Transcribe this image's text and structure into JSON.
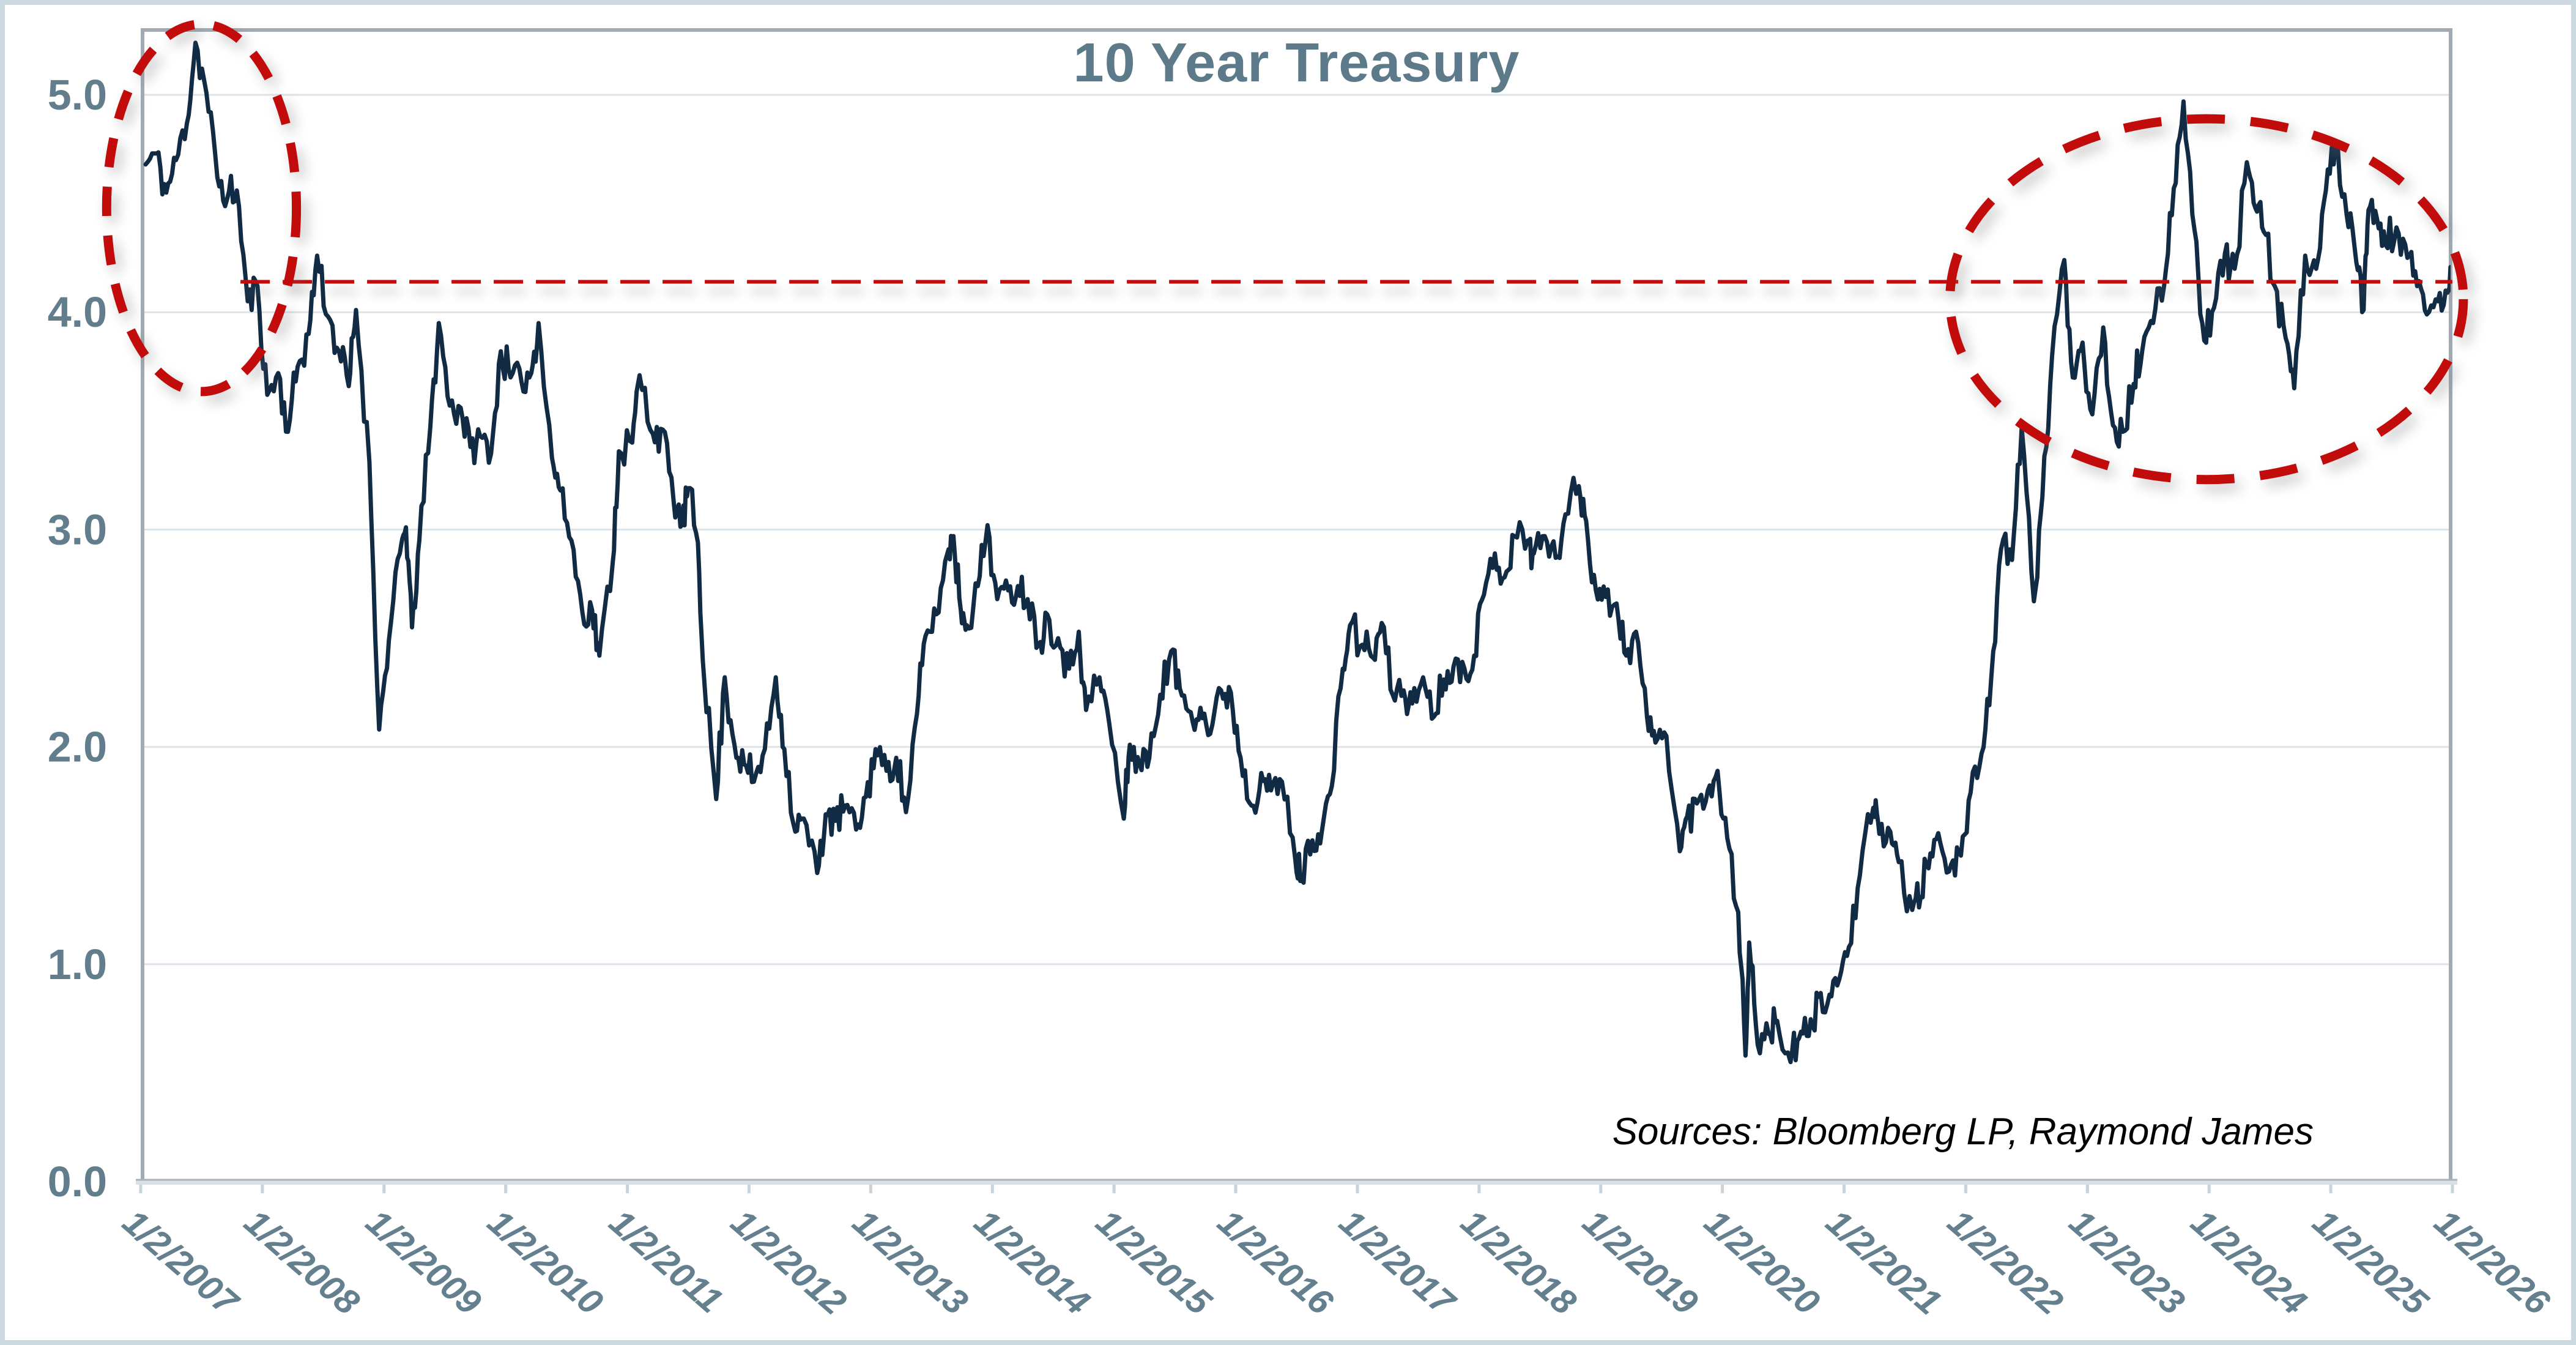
{
  "page": {
    "background": "#ffffff",
    "frame_color": "#cdd9e1"
  },
  "title": {
    "text": "10 Year Treasury",
    "color": "#5d7a8a"
  },
  "source_note": {
    "text": "Sources: Bloomberg LP, Raymond James",
    "color": "#000000"
  },
  "chart_data": {
    "type": "line",
    "title": "10 Year Treasury",
    "xlabel": "",
    "ylabel": "",
    "ylim": [
      0,
      5.31
    ],
    "xlim": [
      2007,
      2026
    ],
    "grid": {
      "horizontal": true,
      "vertical": false,
      "color": "#dce4ea"
    },
    "legend": "none",
    "plot_border_color": "#a2abb4",
    "axis_band_color": "#d9e1e7",
    "axis_edge_color": "#a9b3bb",
    "tick_mark_color": "#c9d3da",
    "y_axis": {
      "tick_values": [
        0,
        1,
        2,
        3,
        4,
        5
      ],
      "tick_labels": [
        "0.0",
        "1.0",
        "2.0",
        "3.0",
        "4.0",
        "5.0"
      ],
      "label_color": "#627e8d"
    },
    "x_axis": {
      "tick_years": [
        2007,
        2008,
        2009,
        2010,
        2011,
        2012,
        2013,
        2014,
        2015,
        2016,
        2017,
        2018,
        2019,
        2020,
        2021,
        2022,
        2023,
        2024,
        2025,
        2026
      ],
      "tick_labels": [
        "1/2/2007",
        "1/2/2008",
        "1/2/2009",
        "1/2/2010",
        "1/2/2011",
        "1/2/2012",
        "1/2/2013",
        "1/2/2014",
        "1/2/2015",
        "1/2/2016",
        "1/2/2017",
        "1/2/2018",
        "1/2/2019",
        "1/2/2020",
        "1/2/2021",
        "1/2/2022",
        "1/2/2023",
        "1/2/2024",
        "1/2/2025",
        "1/2/2026"
      ],
      "label_color": "#64808e",
      "label_rotation_deg": 41
    },
    "series": [
      {
        "name": "10 Year Treasury Yield (%)",
        "color": "#112b44",
        "stroke_width": 7,
        "points": [
          [
            2007.04,
            4.68
          ],
          [
            2007.13,
            4.73
          ],
          [
            2007.21,
            4.55
          ],
          [
            2007.29,
            4.7
          ],
          [
            2007.38,
            4.87
          ],
          [
            2007.45,
            5.24
          ],
          [
            2007.54,
            5.01
          ],
          [
            2007.63,
            4.62
          ],
          [
            2007.71,
            4.52
          ],
          [
            2007.79,
            4.56
          ],
          [
            2007.88,
            4.05
          ],
          [
            2007.96,
            4.12
          ],
          [
            2008.04,
            3.62
          ],
          [
            2008.13,
            3.72
          ],
          [
            2008.21,
            3.45
          ],
          [
            2008.29,
            3.75
          ],
          [
            2008.38,
            3.9
          ],
          [
            2008.45,
            4.26
          ],
          [
            2008.54,
            3.98
          ],
          [
            2008.63,
            3.82
          ],
          [
            2008.71,
            3.66
          ],
          [
            2008.77,
            4.01
          ],
          [
            2008.88,
            3.31
          ],
          [
            2008.96,
            2.08
          ],
          [
            2009.04,
            2.49
          ],
          [
            2009.13,
            2.89
          ],
          [
            2009.18,
            3.01
          ],
          [
            2009.23,
            2.55
          ],
          [
            2009.29,
            2.95
          ],
          [
            2009.38,
            3.47
          ],
          [
            2009.45,
            3.95
          ],
          [
            2009.54,
            3.57
          ],
          [
            2009.63,
            3.56
          ],
          [
            2009.71,
            3.38
          ],
          [
            2009.79,
            3.43
          ],
          [
            2009.88,
            3.35
          ],
          [
            2009.96,
            3.82
          ],
          [
            2010.04,
            3.7
          ],
          [
            2010.13,
            3.68
          ],
          [
            2010.21,
            3.72
          ],
          [
            2010.27,
            3.95
          ],
          [
            2010.38,
            3.33
          ],
          [
            2010.45,
            3.18
          ],
          [
            2010.54,
            2.95
          ],
          [
            2010.63,
            2.62
          ],
          [
            2010.71,
            2.63
          ],
          [
            2010.77,
            2.42
          ],
          [
            2010.88,
            2.85
          ],
          [
            2010.93,
            3.36
          ],
          [
            2011.04,
            3.4
          ],
          [
            2011.1,
            3.71
          ],
          [
            2011.21,
            3.44
          ],
          [
            2011.29,
            3.46
          ],
          [
            2011.38,
            3.13
          ],
          [
            2011.45,
            3.02
          ],
          [
            2011.5,
            3.19
          ],
          [
            2011.58,
            2.94
          ],
          [
            2011.63,
            2.32
          ],
          [
            2011.73,
            1.76
          ],
          [
            2011.8,
            2.32
          ],
          [
            2011.88,
            2.01
          ],
          [
            2011.96,
            1.92
          ],
          [
            2012.04,
            1.84
          ],
          [
            2012.13,
            1.99
          ],
          [
            2012.22,
            2.32
          ],
          [
            2012.29,
            1.99
          ],
          [
            2012.38,
            1.61
          ],
          [
            2012.45,
            1.67
          ],
          [
            2012.56,
            1.42
          ],
          [
            2012.63,
            1.69
          ],
          [
            2012.71,
            1.66
          ],
          [
            2012.79,
            1.73
          ],
          [
            2012.88,
            1.62
          ],
          [
            2012.96,
            1.77
          ],
          [
            2013.04,
            1.99
          ],
          [
            2013.13,
            1.89
          ],
          [
            2013.21,
            1.95
          ],
          [
            2013.29,
            1.7
          ],
          [
            2013.38,
            2.15
          ],
          [
            2013.45,
            2.51
          ],
          [
            2013.54,
            2.61
          ],
          [
            2013.63,
            2.89
          ],
          [
            2013.68,
            2.97
          ],
          [
            2013.74,
            2.63
          ],
          [
            2013.79,
            2.56
          ],
          [
            2013.88,
            2.74
          ],
          [
            2013.96,
            3.02
          ],
          [
            2014.04,
            2.68
          ],
          [
            2014.13,
            2.72
          ],
          [
            2014.21,
            2.74
          ],
          [
            2014.29,
            2.68
          ],
          [
            2014.38,
            2.47
          ],
          [
            2014.45,
            2.61
          ],
          [
            2014.54,
            2.5
          ],
          [
            2014.63,
            2.36
          ],
          [
            2014.71,
            2.53
          ],
          [
            2014.77,
            2.17
          ],
          [
            2014.88,
            2.32
          ],
          [
            2014.96,
            2.11
          ],
          [
            2015.08,
            1.67
          ],
          [
            2015.13,
            2.01
          ],
          [
            2015.21,
            1.92
          ],
          [
            2015.29,
            1.95
          ],
          [
            2015.38,
            2.24
          ],
          [
            2015.47,
            2.44
          ],
          [
            2015.54,
            2.27
          ],
          [
            2015.63,
            2.16
          ],
          [
            2015.71,
            2.18
          ],
          [
            2015.79,
            2.06
          ],
          [
            2015.88,
            2.26
          ],
          [
            2015.96,
            2.25
          ],
          [
            2016.04,
            1.95
          ],
          [
            2016.13,
            1.73
          ],
          [
            2016.21,
            1.88
          ],
          [
            2016.29,
            1.8
          ],
          [
            2016.38,
            1.84
          ],
          [
            2016.49,
            1.48
          ],
          [
            2016.54,
            1.39
          ],
          [
            2016.63,
            1.57
          ],
          [
            2016.71,
            1.62
          ],
          [
            2016.79,
            1.82
          ],
          [
            2016.88,
            2.36
          ],
          [
            2016.94,
            2.56
          ],
          [
            2017.04,
            2.47
          ],
          [
            2017.13,
            2.41
          ],
          [
            2017.2,
            2.57
          ],
          [
            2017.29,
            2.24
          ],
          [
            2017.38,
            2.26
          ],
          [
            2017.45,
            2.2
          ],
          [
            2017.54,
            2.32
          ],
          [
            2017.63,
            2.14
          ],
          [
            2017.71,
            2.31
          ],
          [
            2017.79,
            2.37
          ],
          [
            2017.88,
            2.36
          ],
          [
            2017.96,
            2.42
          ],
          [
            2018.04,
            2.7
          ],
          [
            2018.13,
            2.89
          ],
          [
            2018.21,
            2.78
          ],
          [
            2018.29,
            2.97
          ],
          [
            2018.4,
            2.95
          ],
          [
            2018.45,
            2.89
          ],
          [
            2018.54,
            2.97
          ],
          [
            2018.63,
            2.87
          ],
          [
            2018.71,
            3.07
          ],
          [
            2018.82,
            3.2
          ],
          [
            2018.88,
            3.04
          ],
          [
            2018.96,
            2.72
          ],
          [
            2019.04,
            2.69
          ],
          [
            2019.13,
            2.66
          ],
          [
            2019.21,
            2.42
          ],
          [
            2019.29,
            2.53
          ],
          [
            2019.38,
            2.14
          ],
          [
            2019.45,
            2.02
          ],
          [
            2019.54,
            2.05
          ],
          [
            2019.65,
            1.52
          ],
          [
            2019.71,
            1.68
          ],
          [
            2019.79,
            1.74
          ],
          [
            2019.88,
            1.8
          ],
          [
            2019.96,
            1.89
          ],
          [
            2020.04,
            1.58
          ],
          [
            2020.13,
            1.24
          ],
          [
            2020.19,
            0.58
          ],
          [
            2020.22,
            1.1
          ],
          [
            2020.29,
            0.63
          ],
          [
            2020.38,
            0.68
          ],
          [
            2020.45,
            0.74
          ],
          [
            2020.56,
            0.55
          ],
          [
            2020.63,
            0.66
          ],
          [
            2020.71,
            0.67
          ],
          [
            2020.79,
            0.85
          ],
          [
            2020.88,
            0.86
          ],
          [
            2020.96,
            0.93
          ],
          [
            2021.04,
            1.08
          ],
          [
            2021.13,
            1.41
          ],
          [
            2021.24,
            1.72
          ],
          [
            2021.29,
            1.6
          ],
          [
            2021.38,
            1.61
          ],
          [
            2021.45,
            1.47
          ],
          [
            2021.56,
            1.25
          ],
          [
            2021.63,
            1.31
          ],
          [
            2021.71,
            1.51
          ],
          [
            2021.79,
            1.56
          ],
          [
            2021.88,
            1.46
          ],
          [
            2021.96,
            1.5
          ],
          [
            2022.04,
            1.79
          ],
          [
            2022.13,
            1.97
          ],
          [
            2022.21,
            2.32
          ],
          [
            2022.29,
            2.91
          ],
          [
            2022.38,
            2.86
          ],
          [
            2022.46,
            3.47
          ],
          [
            2022.56,
            2.67
          ],
          [
            2022.63,
            3.15
          ],
          [
            2022.71,
            3.8
          ],
          [
            2022.81,
            4.24
          ],
          [
            2022.88,
            3.7
          ],
          [
            2022.96,
            3.86
          ],
          [
            2023.04,
            3.53
          ],
          [
            2023.13,
            3.93
          ],
          [
            2023.21,
            3.48
          ],
          [
            2023.29,
            3.45
          ],
          [
            2023.38,
            3.67
          ],
          [
            2023.45,
            3.82
          ],
          [
            2023.54,
            3.95
          ],
          [
            2023.63,
            4.12
          ],
          [
            2023.71,
            4.57
          ],
          [
            2023.79,
            4.97
          ],
          [
            2023.88,
            4.38
          ],
          [
            2023.96,
            3.87
          ],
          [
            2024.04,
            4.02
          ],
          [
            2024.13,
            4.27
          ],
          [
            2024.21,
            4.2
          ],
          [
            2024.31,
            4.69
          ],
          [
            2024.38,
            4.48
          ],
          [
            2024.45,
            4.37
          ],
          [
            2024.54,
            4.12
          ],
          [
            2024.63,
            3.88
          ],
          [
            2024.7,
            3.65
          ],
          [
            2024.79,
            4.26
          ],
          [
            2024.88,
            4.2
          ],
          [
            2024.96,
            4.56
          ],
          [
            2025.04,
            4.78
          ],
          [
            2025.13,
            4.45
          ],
          [
            2025.21,
            4.23
          ],
          [
            2025.27,
            4.01
          ],
          [
            2025.31,
            4.47
          ],
          [
            2025.38,
            4.43
          ],
          [
            2025.45,
            4.31
          ],
          [
            2025.54,
            4.39
          ],
          [
            2025.63,
            4.25
          ],
          [
            2025.71,
            4.12
          ],
          [
            2025.79,
            3.99
          ],
          [
            2025.88,
            4.05
          ],
          [
            2025.96,
            4.09
          ],
          [
            2026.0,
            4.18
          ]
        ]
      }
    ],
    "reference_line": {
      "label": "current-rate dashed line",
      "value": 4.14,
      "x_start": 2007.82,
      "x_end": 2026.0,
      "color": "#c20b0b",
      "stroke_width": 6,
      "dash": [
        48,
        21
      ]
    },
    "annotations": [
      {
        "type": "ellipse",
        "label": "2007 rate-peak highlight",
        "center_x": 2007.5,
        "center_y": 4.48,
        "radius_x_years": 0.78,
        "radius_y_value": 0.845,
        "color": "#c20b0b",
        "stroke_width": 15,
        "dash": [
          48,
          32
        ]
      },
      {
        "type": "ellipse",
        "label": "2022-2025 rate-peak highlight",
        "center_x": 2023.98,
        "center_y": 4.06,
        "radius_x_years": 2.11,
        "radius_y_value": 0.83,
        "color": "#c20b0b",
        "stroke_width": 15,
        "dash": [
          62,
          42
        ]
      }
    ],
    "render": {
      "noise_amplitude": 0.05,
      "noise_subdivisions": 5,
      "noise_seed": 11
    }
  }
}
